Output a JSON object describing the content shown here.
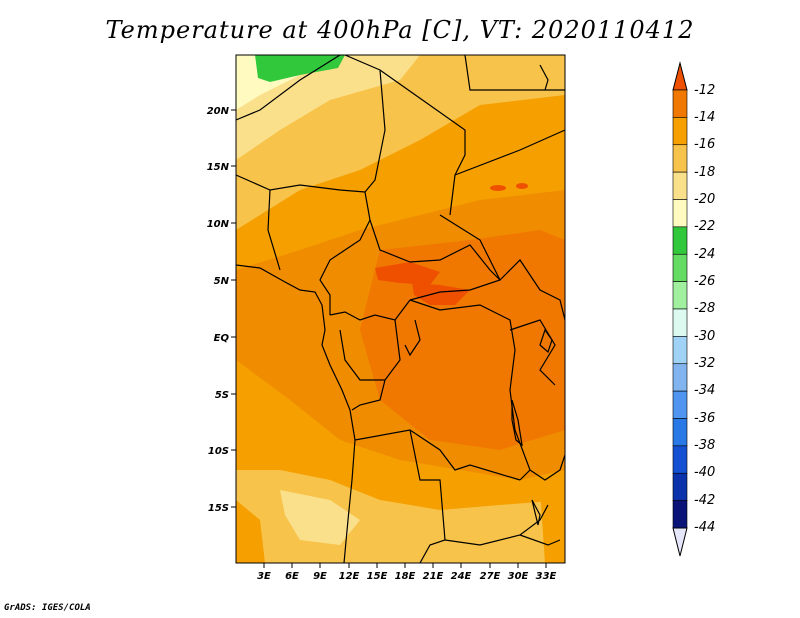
{
  "title": "Temperature at 400hPa [C], VT: 2020110412",
  "footer": "GrADS: IGES/COLA",
  "y_axis_labels": [
    "20N",
    "15N",
    "10N",
    "5N",
    "EQ",
    "5S",
    "10S",
    "15S"
  ],
  "x_axis_labels": [
    "3E",
    "6E",
    "9E",
    "12E",
    "15E",
    "18E",
    "21E",
    "24E",
    "27E",
    "30E",
    "33E"
  ],
  "colorbar": {
    "labels": [
      "-12",
      "-14",
      "-16",
      "-18",
      "-20",
      "-22",
      "-24",
      "-26",
      "-28",
      "-30",
      "-32",
      "-34",
      "-36",
      "-38",
      "-40",
      "-42",
      "-44"
    ],
    "colors": [
      "#ee5000",
      "#f07800",
      "#f5a000",
      "#f8c34a",
      "#fbe08c",
      "#fffbc0",
      "#32c83c",
      "#64dc64",
      "#a0f0a0",
      "#dcfaf0",
      "#a0d2f5",
      "#82b4f0",
      "#5096f0",
      "#2878e6",
      "#1450d2",
      "#0a32aa",
      "#0a1478",
      "#e6e6fa"
    ]
  },
  "chart_data": {
    "type": "heatmap",
    "title": "Temperature at 400hPa [C], VT: 2020110412",
    "units": "C",
    "lon_ticks": [
      "3E",
      "6E",
      "9E",
      "12E",
      "15E",
      "18E",
      "21E",
      "24E",
      "27E",
      "30E",
      "33E"
    ],
    "lat_ticks": [
      "20N",
      "15N",
      "10N",
      "5N",
      "EQ",
      "5S",
      "10S",
      "15S"
    ],
    "colorbar_levels": [
      -12,
      -14,
      -16,
      -18,
      -20,
      -22,
      -24,
      -26,
      -28,
      -30,
      -32,
      -34,
      -36,
      -38,
      -40,
      -42,
      -44
    ]
  }
}
